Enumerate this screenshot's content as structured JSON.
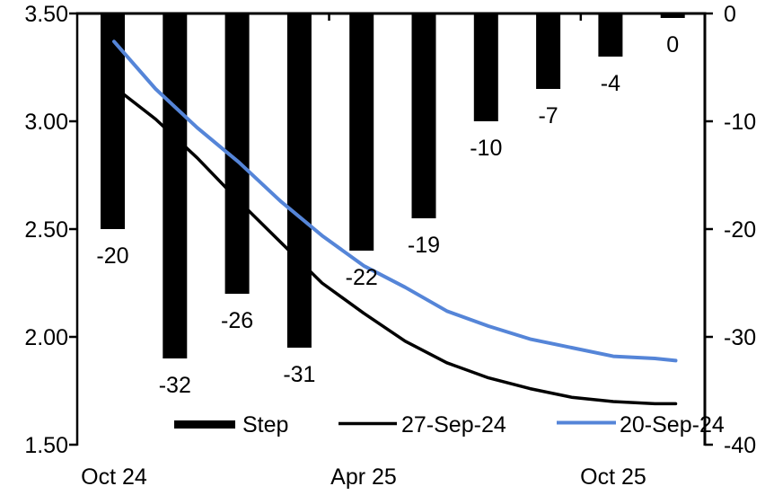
{
  "chart_data": {
    "type": "combo-bar-line",
    "title": "",
    "left_axis": {
      "min": 1.5,
      "max": 3.5,
      "step": 0.5,
      "tick_labels": [
        "3.50",
        "3.00",
        "2.50",
        "2.00",
        "1.50"
      ]
    },
    "right_axis": {
      "min": -40,
      "max": 0,
      "step": -10,
      "tick_labels": [
        "0",
        "-10",
        "-20",
        "-30",
        "-40"
      ]
    },
    "x_axis": {
      "tick_labels": [
        "Oct 24",
        "Apr 25",
        "Oct 25"
      ],
      "tick_label_months": [
        0,
        6,
        12
      ],
      "boundary_tick_months": [
        5.17,
        11.22
      ]
    },
    "bars": {
      "name": "Step",
      "color": "#000000",
      "axis": "right",
      "values": [
        -20,
        -32,
        -26,
        -31,
        -22,
        -19,
        -10,
        -7,
        -4,
        0
      ],
      "data_labels": [
        "-20",
        "-32",
        "-26",
        "-31",
        "-22",
        "-19",
        "-10",
        "-7",
        "-4",
        "0"
      ]
    },
    "lines": [
      {
        "name": "27-Sep-24",
        "color": "#000000",
        "axis": "left",
        "points": [
          {
            "m": 0,
            "v": 3.16
          },
          {
            "m": 1,
            "v": 3.01
          },
          {
            "m": 2,
            "v": 2.83
          },
          {
            "m": 3,
            "v": 2.63
          },
          {
            "m": 4,
            "v": 2.44
          },
          {
            "m": 5,
            "v": 2.25
          },
          {
            "m": 6,
            "v": 2.11
          },
          {
            "m": 7,
            "v": 1.98
          },
          {
            "m": 8,
            "v": 1.88
          },
          {
            "m": 9,
            "v": 1.81
          },
          {
            "m": 10,
            "v": 1.76
          },
          {
            "m": 11,
            "v": 1.72
          },
          {
            "m": 12,
            "v": 1.7
          },
          {
            "m": 13,
            "v": 1.69
          },
          {
            "m": 13.5,
            "v": 1.69
          }
        ]
      },
      {
        "name": "20-Sep-24",
        "color": "#5585D8",
        "axis": "left",
        "points": [
          {
            "m": 0,
            "v": 3.37
          },
          {
            "m": 1,
            "v": 3.15
          },
          {
            "m": 2,
            "v": 2.97
          },
          {
            "m": 3,
            "v": 2.81
          },
          {
            "m": 4,
            "v": 2.63
          },
          {
            "m": 5,
            "v": 2.47
          },
          {
            "m": 6,
            "v": 2.33
          },
          {
            "m": 7,
            "v": 2.23
          },
          {
            "m": 8,
            "v": 2.12
          },
          {
            "m": 9,
            "v": 2.05
          },
          {
            "m": 10,
            "v": 1.99
          },
          {
            "m": 11,
            "v": 1.95
          },
          {
            "m": 12,
            "v": 1.91
          },
          {
            "m": 13,
            "v": 1.9
          },
          {
            "m": 13.5,
            "v": 1.89
          }
        ]
      }
    ]
  },
  "legend": {
    "items": [
      {
        "label": "Step",
        "type": "bar",
        "color": "#000000"
      },
      {
        "label": "27-Sep-24",
        "type": "line",
        "color": "#000000"
      },
      {
        "label": "20-Sep-24",
        "type": "line",
        "color": "#5585D8"
      }
    ]
  }
}
